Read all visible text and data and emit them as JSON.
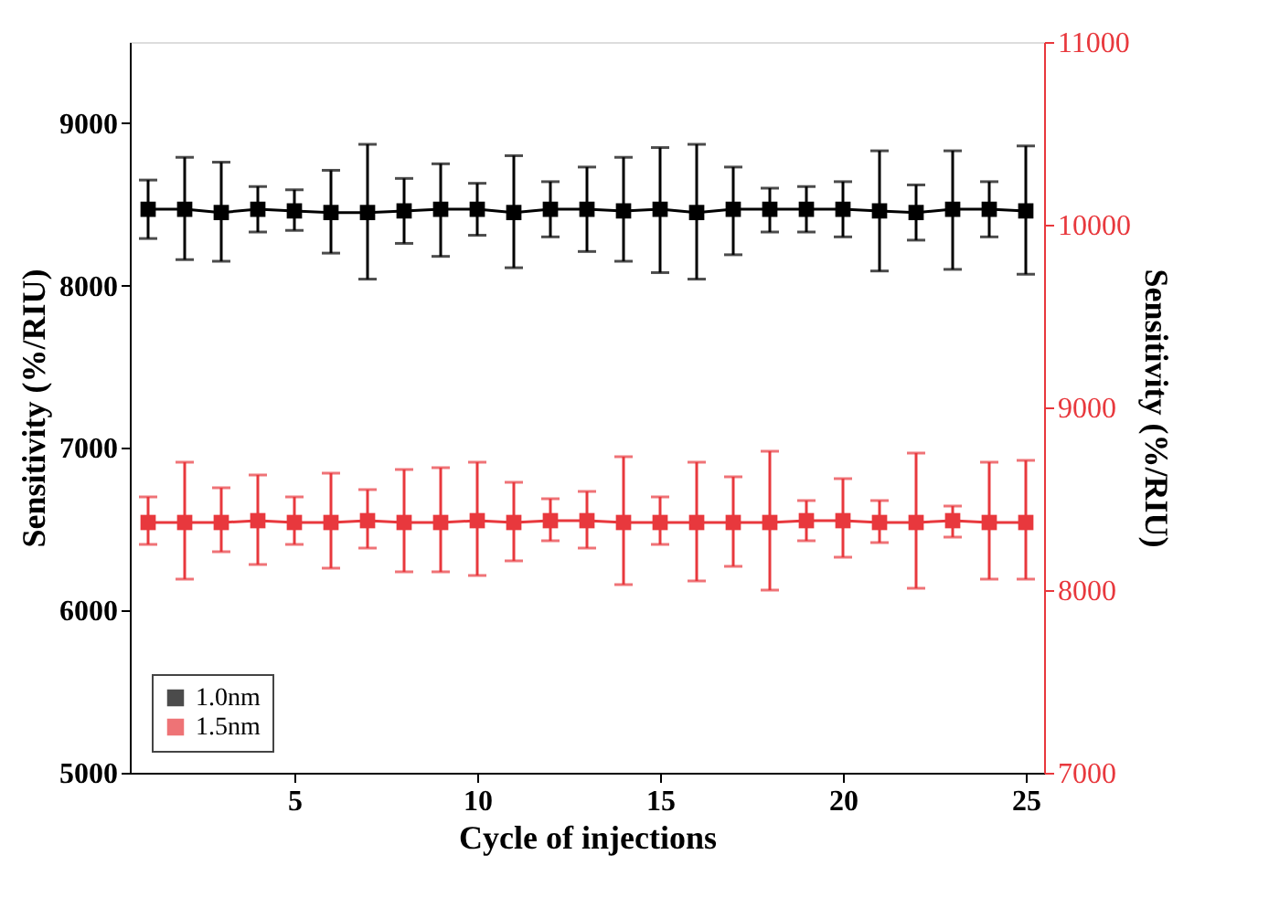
{
  "chart_data": {
    "type": "line",
    "xlabel": "Cycle of injections",
    "ylabel": "Sensitivity (%/RIU)",
    "y2label": "Sensitivity (%/RIU)",
    "x": [
      1,
      2,
      3,
      4,
      5,
      6,
      7,
      8,
      9,
      10,
      11,
      12,
      13,
      14,
      15,
      16,
      17,
      18,
      19,
      20,
      21,
      22,
      23,
      24,
      25
    ],
    "series": [
      {
        "name": "1.0nm",
        "color": "#000000",
        "values": [
          8470,
          8470,
          8450,
          8470,
          8460,
          8450,
          8450,
          8460,
          8470,
          8470,
          8450,
          8470,
          8470,
          8460,
          8470,
          8450,
          8470,
          8470,
          8470,
          8470,
          8460,
          8450,
          8470,
          8470,
          8460
        ],
        "errors": [
          [
            8290,
            8650
          ],
          [
            8160,
            8790
          ],
          [
            8150,
            8760
          ],
          [
            8330,
            8610
          ],
          [
            8340,
            8590
          ],
          [
            8200,
            8710
          ],
          [
            8040,
            8870
          ],
          [
            8260,
            8660
          ],
          [
            8180,
            8750
          ],
          [
            8310,
            8630
          ],
          [
            8110,
            8800
          ],
          [
            8300,
            8640
          ],
          [
            8210,
            8730
          ],
          [
            8150,
            8790
          ],
          [
            8080,
            8850
          ],
          [
            8040,
            8870
          ],
          [
            8190,
            8730
          ],
          [
            8330,
            8600
          ],
          [
            8330,
            8610
          ],
          [
            8300,
            8640
          ],
          [
            8090,
            8830
          ],
          [
            8280,
            8620
          ],
          [
            8100,
            8830
          ],
          [
            8300,
            8640
          ],
          [
            8070,
            8860
          ]
        ]
      },
      {
        "name": "1.5nm",
        "color": "#e8383d",
        "axis": "y2",
        "values": [
          8370,
          8370,
          8370,
          8380,
          8370,
          8370,
          8380,
          8370,
          8370,
          8380,
          8370,
          8380,
          8380,
          8370,
          8370,
          8370,
          8370,
          8370,
          8380,
          8380,
          8370,
          8370,
          8380,
          8370,
          8370
        ],
        "errors": [
          [
            8250,
            8510
          ],
          [
            8060,
            8700
          ],
          [
            8210,
            8560
          ],
          [
            8140,
            8630
          ],
          [
            8250,
            8510
          ],
          [
            8120,
            8640
          ],
          [
            8230,
            8550
          ],
          [
            8100,
            8660
          ],
          [
            8100,
            8670
          ],
          [
            8080,
            8700
          ],
          [
            8160,
            8590
          ],
          [
            8270,
            8500
          ],
          [
            8230,
            8540
          ],
          [
            8030,
            8730
          ],
          [
            8250,
            8510
          ],
          [
            8050,
            8700
          ],
          [
            8130,
            8620
          ],
          [
            8000,
            8760
          ],
          [
            8270,
            8490
          ],
          [
            8180,
            8610
          ],
          [
            8260,
            8490
          ],
          [
            8010,
            8750
          ],
          [
            8290,
            8460
          ],
          [
            8060,
            8700
          ],
          [
            8060,
            8710
          ]
        ]
      }
    ],
    "xlim": [
      0.5,
      25.5
    ],
    "xticks": [
      5,
      10,
      15,
      20,
      25
    ],
    "ylim": [
      5000,
      9500
    ],
    "yticks": [
      5000,
      6000,
      7000,
      8000,
      9000
    ],
    "y2lim": [
      7000,
      11000
    ],
    "y2ticks": [
      7000,
      8000,
      9000,
      10000,
      11000
    ],
    "marker": "square",
    "line_style": "solid",
    "legend": "bottom left",
    "grid": false
  }
}
